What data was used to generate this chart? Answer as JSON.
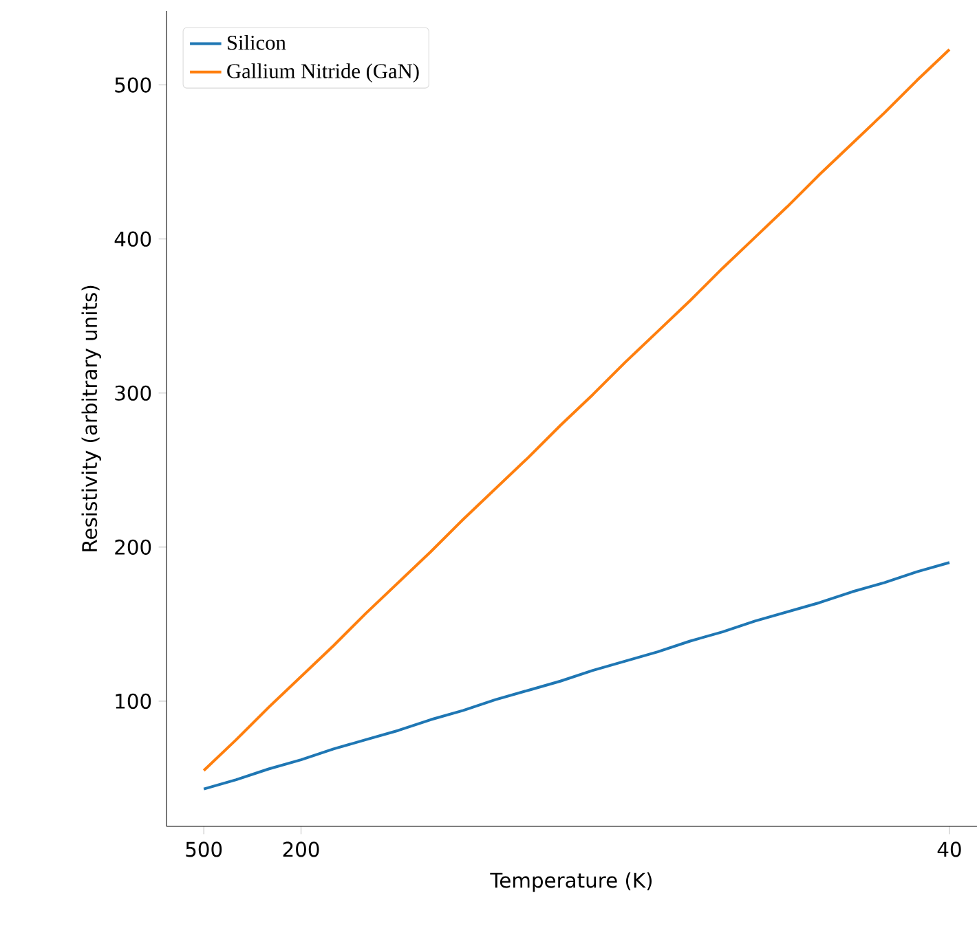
{
  "chart_data": {
    "type": "line",
    "xlabel": "Temperature (K)",
    "ylabel": "Resistivity (arbitrary units)",
    "categories": [
      "500",
      null,
      null,
      "200",
      null,
      null,
      null,
      null,
      null,
      null,
      null,
      null,
      null,
      null,
      null,
      null,
      null,
      null,
      null,
      null,
      null,
      null,
      null,
      "40"
    ],
    "ylim": [
      18.75,
      548
    ],
    "yticks": [
      100,
      200,
      300,
      400,
      500
    ],
    "legend": "top left",
    "marker": "none",
    "line_style": "solid",
    "grid": false,
    "series": [
      {
        "name": "Silicon",
        "color": "#1f77b4",
        "values": [
          43,
          49,
          56,
          62,
          69,
          75,
          81,
          88,
          94,
          101,
          107,
          113,
          120,
          126,
          132,
          139,
          145,
          152,
          158,
          164,
          171,
          177,
          184,
          190
        ]
      },
      {
        "name": "Gallium Nitride (GaN)",
        "color": "#ff7f0e",
        "values": [
          55,
          75,
          96,
          116,
          136,
          157,
          177,
          197,
          218,
          238,
          258,
          279,
          299,
          320,
          340,
          360,
          381,
          401,
          421,
          442,
          462,
          482,
          503,
          523
        ]
      }
    ]
  }
}
